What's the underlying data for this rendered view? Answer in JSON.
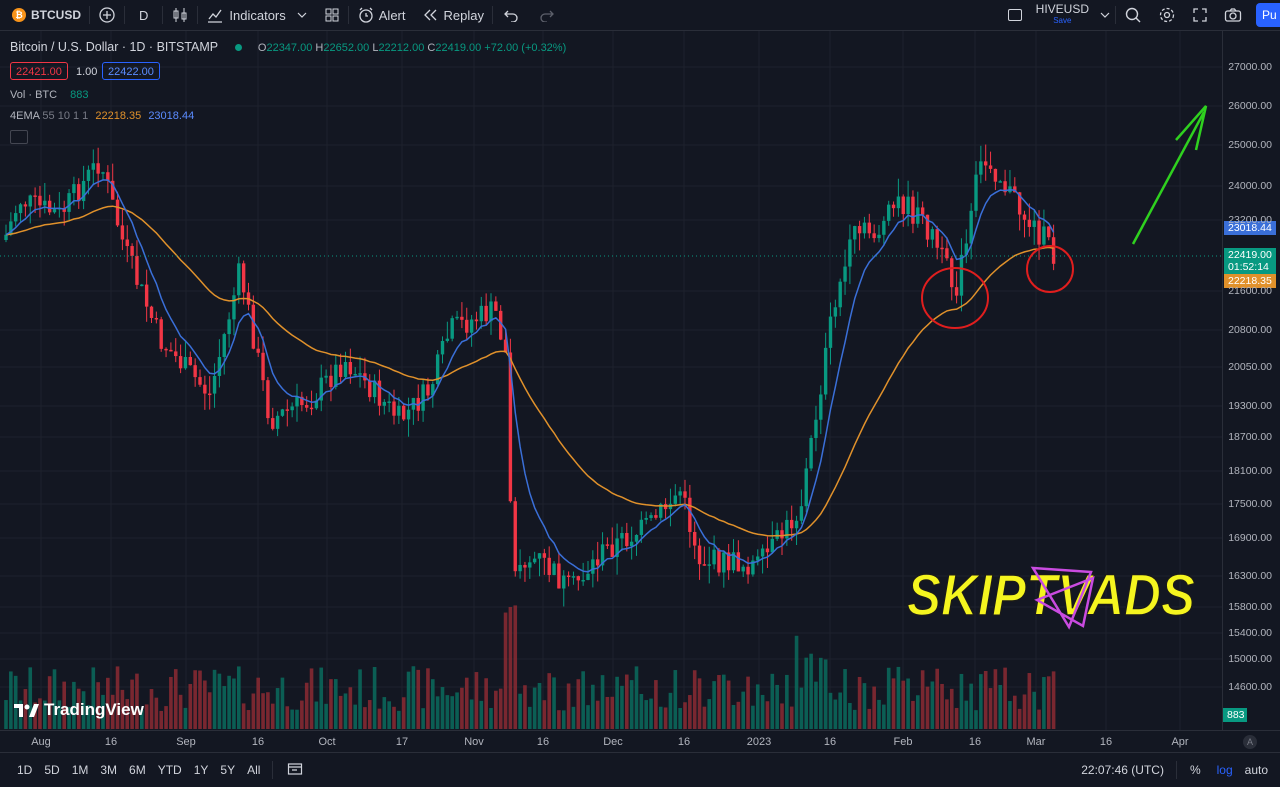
{
  "toolbar": {
    "symbol": "BTCUSD",
    "interval": "D",
    "indicators_label": "Indicators",
    "alert_label": "Alert",
    "replay_label": "Replay",
    "layout_name": "HIVEUSD",
    "layout_sub": "Save",
    "publish_label": "Pu"
  },
  "legend": {
    "title": "Bitcoin / U.S. Dollar · 1D · BITSTAMP",
    "o_key": "O",
    "o": "22347.00",
    "h_key": "H",
    "h": "22652.00",
    "l_key": "L",
    "l": "22212.00",
    "c_key": "C",
    "c": "22419.00",
    "change": "+72.00 (+0.32%)",
    "sell_price": "22421.00",
    "spread": "1.00",
    "buy_price": "22422.00",
    "vol_label": "Vol · BTC",
    "vol_value": "883",
    "ema_label": "4EMA",
    "ema_params": "55 10 1 1",
    "ema_val1": "22218.35",
    "ema_val2": "23018.44"
  },
  "price_axis": {
    "labels": [
      "27000.00",
      "26000.00",
      "25000.00",
      "24000.00",
      "23200.00",
      "21600.00",
      "20800.00",
      "20050.00",
      "19300.00",
      "18700.00",
      "18100.00",
      "17500.00",
      "16900.00",
      "16300.00",
      "15800.00",
      "15400.00",
      "15000.00",
      "14600.00"
    ],
    "tag_ema_fast": "23018.44",
    "tag_last": "22419.00",
    "tag_countdown": "01:52:14",
    "tag_ema_slow": "22218.35",
    "tag_volume": "883"
  },
  "time_axis": {
    "labels": [
      "Aug",
      "16",
      "Sep",
      "16",
      "Oct",
      "17",
      "Nov",
      "16",
      "Dec",
      "16",
      "2023",
      "16",
      "Feb",
      "16",
      "Mar",
      "16",
      "Apr"
    ],
    "auto_scale_label": "A"
  },
  "bottom": {
    "ranges": [
      "1D",
      "5D",
      "1M",
      "3M",
      "6M",
      "YTD",
      "1Y",
      "5Y",
      "All"
    ],
    "clock": "22:07:46 (UTC)",
    "percent_label": "%",
    "log_label": "log",
    "auto_label": "auto"
  },
  "branding": {
    "tradingview": "TradingView",
    "watermark": "SKIPTVADS"
  },
  "colors": {
    "background": "#131722",
    "up": "#089981",
    "down": "#f23645",
    "ema_fast": "#3a6fd8",
    "ema_slow": "#e0912b",
    "annotation_circle": "#e01e1e",
    "annotation_arrow": "#2fd11f",
    "watermark": "#f5f51f"
  }
}
